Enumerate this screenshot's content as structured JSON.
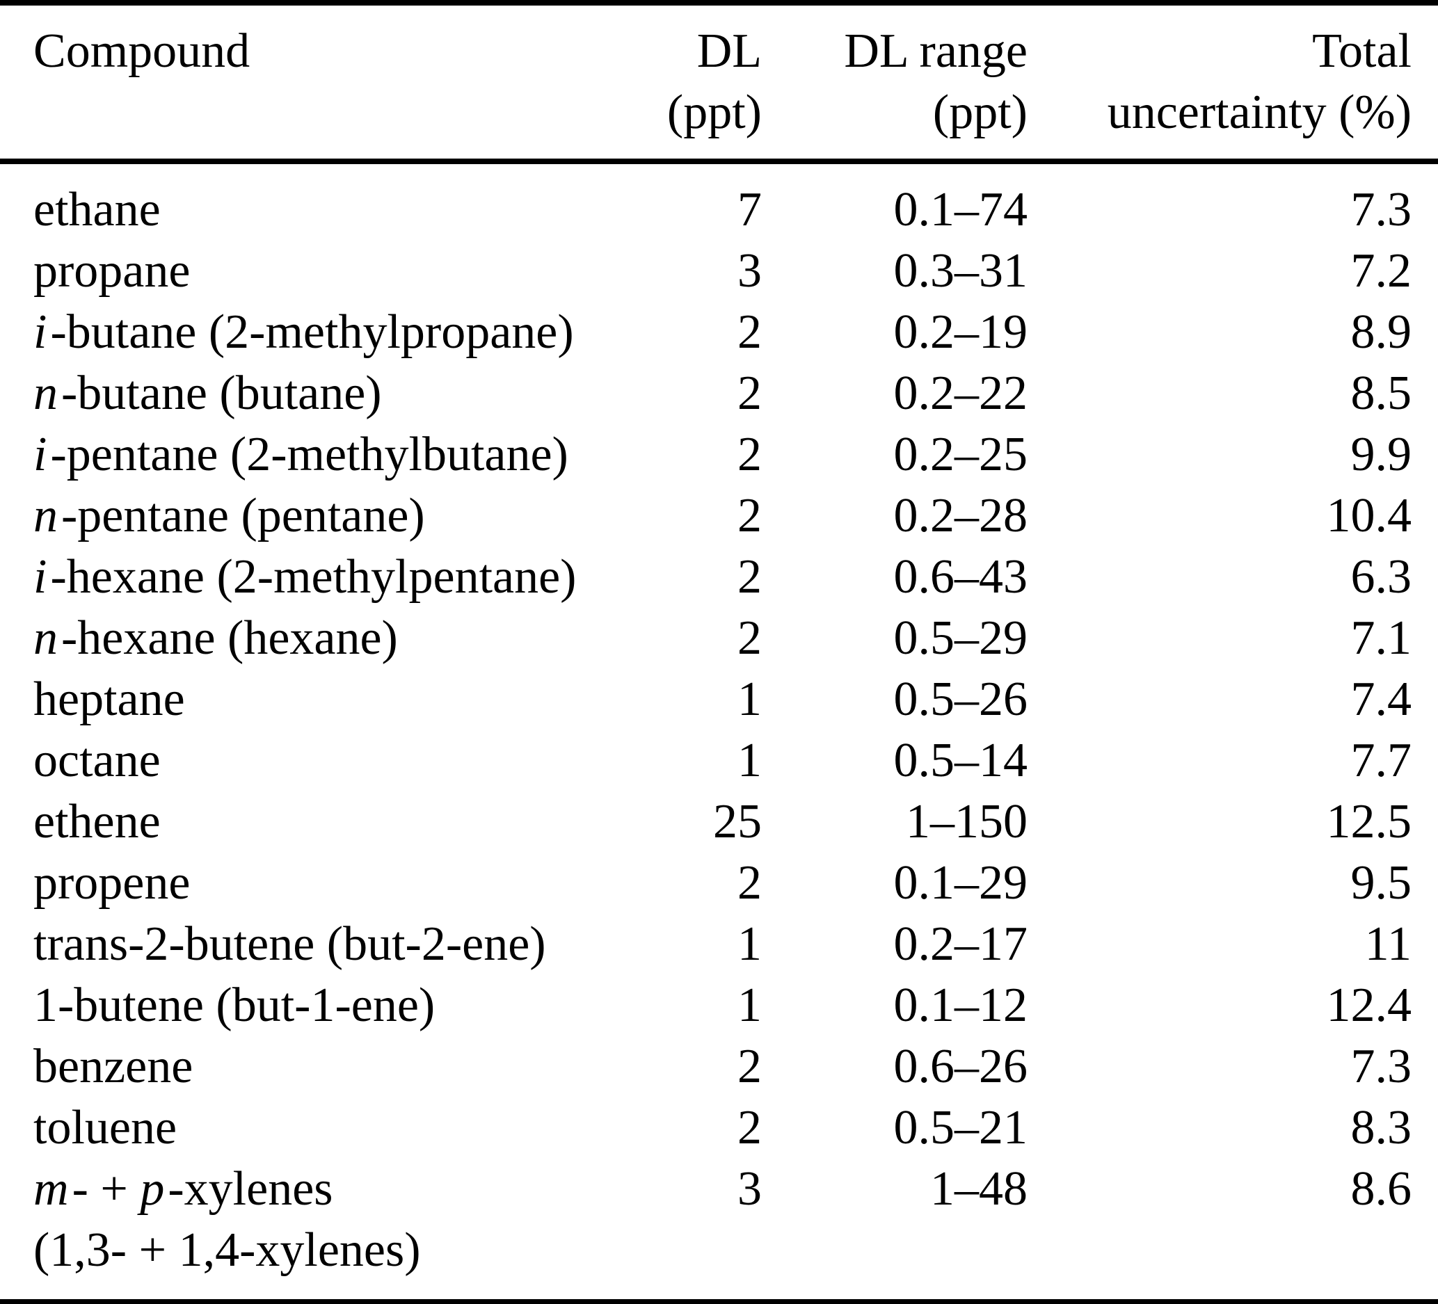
{
  "colors": {
    "background": "#ffffff",
    "text": "#000000",
    "rule": "#000000"
  },
  "table": {
    "columns": [
      {
        "id": "compound",
        "label_line1": "Compound",
        "label_line2": "",
        "align": "left"
      },
      {
        "id": "dl",
        "label_line1": "DL",
        "label_line2": "(ppt)",
        "align": "right"
      },
      {
        "id": "dl_range",
        "label_line1": "DL range",
        "label_line2": "(ppt)",
        "align": "right"
      },
      {
        "id": "uncertainty",
        "label_line1": "Total",
        "label_line2": "uncertainty (%)",
        "align": "right"
      }
    ],
    "rows": [
      {
        "compound": [
          {
            "text": "ethane",
            "italic": false
          }
        ],
        "dl": "7",
        "dl_range": "0.1–74",
        "uncertainty": "7.3"
      },
      {
        "compound": [
          {
            "text": "propane",
            "italic": false
          }
        ],
        "dl": "3",
        "dl_range": "0.3–31",
        "uncertainty": "7.2"
      },
      {
        "compound": [
          {
            "text": "i",
            "italic": true
          },
          {
            "text": "-butane (2-methylpropane)",
            "italic": false
          }
        ],
        "dl": "2",
        "dl_range": "0.2–19",
        "uncertainty": "8.9"
      },
      {
        "compound": [
          {
            "text": "n",
            "italic": true
          },
          {
            "text": "-butane (butane)",
            "italic": false
          }
        ],
        "dl": "2",
        "dl_range": "0.2–22",
        "uncertainty": "8.5"
      },
      {
        "compound": [
          {
            "text": "i",
            "italic": true
          },
          {
            "text": "-pentane (2-methylbutane)",
            "italic": false
          }
        ],
        "dl": "2",
        "dl_range": "0.2–25",
        "uncertainty": "9.9"
      },
      {
        "compound": [
          {
            "text": "n",
            "italic": true
          },
          {
            "text": "-pentane (pentane)",
            "italic": false
          }
        ],
        "dl": "2",
        "dl_range": "0.2–28",
        "uncertainty": "10.4"
      },
      {
        "compound": [
          {
            "text": "i",
            "italic": true
          },
          {
            "text": "-hexane (2-methylpentane)",
            "italic": false
          }
        ],
        "dl": "2",
        "dl_range": "0.6–43",
        "uncertainty": "6.3"
      },
      {
        "compound": [
          {
            "text": "n",
            "italic": true
          },
          {
            "text": "-hexane (hexane)",
            "italic": false
          }
        ],
        "dl": "2",
        "dl_range": "0.5–29",
        "uncertainty": "7.1"
      },
      {
        "compound": [
          {
            "text": "heptane",
            "italic": false
          }
        ],
        "dl": "1",
        "dl_range": "0.5–26",
        "uncertainty": "7.4"
      },
      {
        "compound": [
          {
            "text": "octane",
            "italic": false
          }
        ],
        "dl": "1",
        "dl_range": "0.5–14",
        "uncertainty": "7.7"
      },
      {
        "compound": [
          {
            "text": "ethene",
            "italic": false
          }
        ],
        "dl": "25",
        "dl_range": "1–150",
        "uncertainty": "12.5"
      },
      {
        "compound": [
          {
            "text": "propene",
            "italic": false
          }
        ],
        "dl": "2",
        "dl_range": "0.1–29",
        "uncertainty": "9.5"
      },
      {
        "compound": [
          {
            "text": "trans-2-butene (but-2-ene)",
            "italic": false
          }
        ],
        "dl": "1",
        "dl_range": "0.2–17",
        "uncertainty": "11"
      },
      {
        "compound": [
          {
            "text": "1-butene (but-1-ene)",
            "italic": false
          }
        ],
        "dl": "1",
        "dl_range": "0.1–12",
        "uncertainty": "12.4"
      },
      {
        "compound": [
          {
            "text": "benzene",
            "italic": false
          }
        ],
        "dl": "2",
        "dl_range": "0.6–26",
        "uncertainty": "7.3"
      },
      {
        "compound": [
          {
            "text": "toluene",
            "italic": false
          }
        ],
        "dl": "2",
        "dl_range": "0.5–21",
        "uncertainty": "8.3"
      },
      {
        "compound": [
          {
            "text": "m",
            "italic": true
          },
          {
            "text": "- + ",
            "italic": false
          },
          {
            "text": "p",
            "italic": true
          },
          {
            "text": "-xylenes",
            "italic": false
          }
        ],
        "compound_line2": [
          {
            "text": "(1,3- + 1,4-xylenes)",
            "italic": false
          }
        ],
        "dl": "3",
        "dl_range": "1–48",
        "uncertainty": "8.6"
      }
    ]
  }
}
